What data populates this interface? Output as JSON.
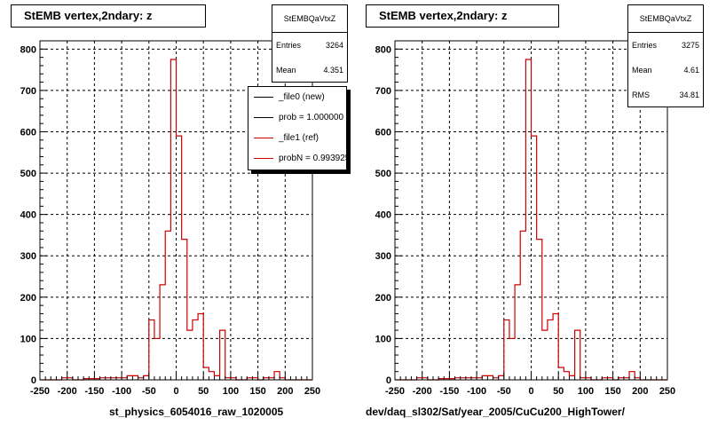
{
  "chart_data": [
    {
      "type": "histogram",
      "title": "StEMB  vertex,2ndary: z",
      "xlabel": "st_physics_6054016_raw_1020005",
      "xlim": [
        -250,
        250
      ],
      "ylim": [
        0,
        820
      ],
      "x_ticks": [
        -250,
        -200,
        -150,
        -100,
        -50,
        0,
        50,
        100,
        150,
        200,
        250
      ],
      "y_ticks": [
        0,
        100,
        200,
        300,
        400,
        500,
        600,
        700,
        800
      ],
      "grid": true,
      "bin_width": 10,
      "series": [
        {
          "color": "#cc0000",
          "bins_x_low": [
            -250,
            -240,
            -230,
            -220,
            -210,
            -200,
            -190,
            -180,
            -170,
            -160,
            -150,
            -140,
            -130,
            -120,
            -110,
            -100,
            -90,
            -80,
            -70,
            -60,
            -50,
            -40,
            -30,
            -20,
            -10,
            0,
            10,
            20,
            30,
            40,
            50,
            60,
            70,
            80,
            90,
            100,
            110,
            120,
            130,
            140,
            150,
            160,
            170,
            180,
            190,
            200,
            210,
            220,
            230,
            240
          ],
          "values": [
            0,
            0,
            0,
            0,
            5,
            5,
            0,
            0,
            3,
            3,
            3,
            5,
            5,
            5,
            5,
            5,
            10,
            10,
            5,
            10,
            145,
            100,
            230,
            360,
            775,
            590,
            340,
            120,
            145,
            160,
            30,
            20,
            10,
            120,
            5,
            5,
            0,
            0,
            5,
            5,
            0,
            5,
            5,
            20,
            5,
            0,
            0,
            0,
            0,
            0
          ]
        }
      ],
      "stats": {
        "name": "StEMBQaVtxZ",
        "Entries": "3264",
        "Mean": "4.351"
      },
      "legend": {
        "placement": "top-right",
        "entries": [
          {
            "label": "_file0 (new)",
            "color": "#000000"
          },
          {
            "label": "prob = 1.000000",
            "color": "#000000"
          },
          {
            "label": "_file1 (ref)",
            "color": "#cc0000"
          },
          {
            "label": "probN = 0.993925",
            "color": "#cc0000"
          }
        ]
      }
    },
    {
      "type": "histogram",
      "title": "StEMB  vertex,2ndary: z",
      "xlabel": "dev/daq_sl302/Sat/year_2005/CuCu200_HighTower/",
      "xlim": [
        -250,
        250
      ],
      "ylim": [
        0,
        820
      ],
      "x_ticks": [
        -250,
        -200,
        -150,
        -100,
        -50,
        0,
        50,
        100,
        150,
        200,
        250
      ],
      "y_ticks": [
        0,
        100,
        200,
        300,
        400,
        500,
        600,
        700,
        800
      ],
      "grid": true,
      "bin_width": 10,
      "series": [
        {
          "color": "#cc0000",
          "bins_x_low": [
            -250,
            -240,
            -230,
            -220,
            -210,
            -200,
            -190,
            -180,
            -170,
            -160,
            -150,
            -140,
            -130,
            -120,
            -110,
            -100,
            -90,
            -80,
            -70,
            -60,
            -50,
            -40,
            -30,
            -20,
            -10,
            0,
            10,
            20,
            30,
            40,
            50,
            60,
            70,
            80,
            90,
            100,
            110,
            120,
            130,
            140,
            150,
            160,
            170,
            180,
            190,
            200,
            210,
            220,
            230,
            240
          ],
          "values": [
            0,
            0,
            0,
            0,
            5,
            5,
            0,
            0,
            3,
            3,
            3,
            5,
            5,
            5,
            5,
            5,
            10,
            10,
            5,
            10,
            145,
            100,
            230,
            360,
            775,
            590,
            340,
            120,
            145,
            160,
            30,
            20,
            10,
            120,
            5,
            5,
            0,
            0,
            5,
            5,
            0,
            5,
            5,
            20,
            5,
            0,
            0,
            0,
            0,
            0
          ]
        }
      ],
      "stats": {
        "name": "StEMBQaVtxZ",
        "Entries": "3275",
        "Mean": "4.61",
        "RMS": "34.81"
      }
    }
  ]
}
